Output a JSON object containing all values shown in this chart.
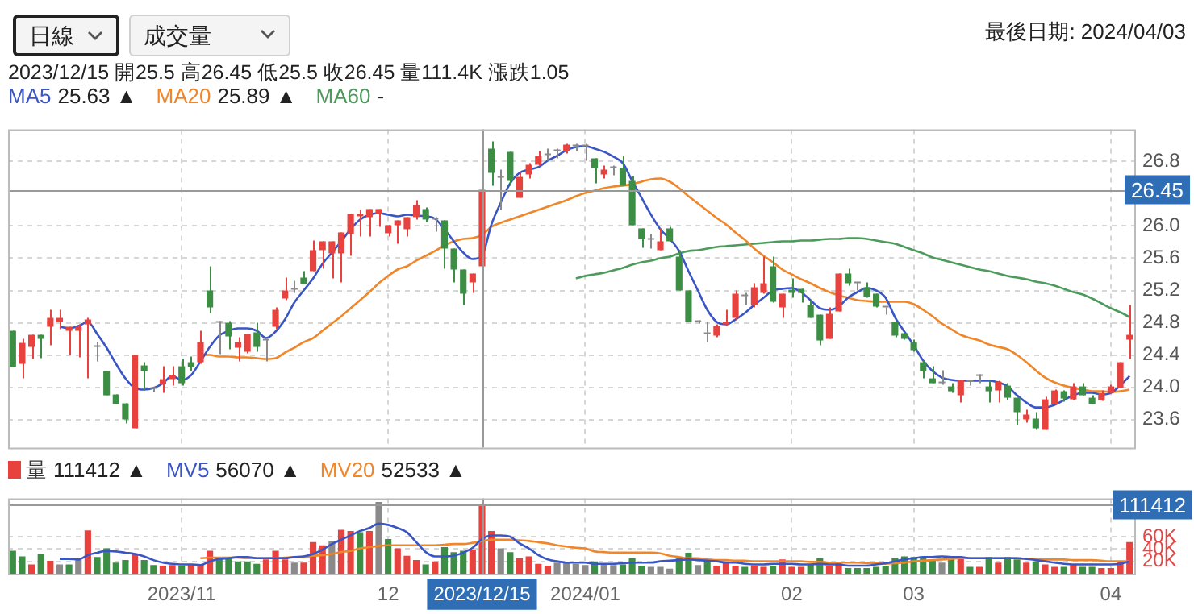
{
  "chart_data": [
    {
      "type": "candlestick",
      "title": "2023/12/15 開25.5 高26.45 低25.5 收26.45 量111.4K 漲跌1.05",
      "subtitle": "最後日期: 2024/04/03",
      "annotations": [
        "日線",
        "成交量",
        "25.63 ▲",
        "25.89 ▲",
        "-"
      ],
      "categories": [
        null,
        null,
        null,
        null,
        null,
        null,
        null,
        null,
        null,
        null,
        null,
        null,
        null,
        null,
        null,
        null,
        null,
        null,
        "2023/11",
        null,
        null,
        null,
        null,
        null,
        null,
        null,
        null,
        null,
        null,
        null,
        null,
        null,
        null,
        null,
        null,
        null,
        null,
        null,
        null,
        null,
        "12",
        null,
        null,
        null,
        null,
        null,
        null,
        null,
        null,
        null,
        "2023/12/15",
        null,
        null,
        null,
        null,
        null,
        null,
        null,
        null,
        null,
        null,
        "2024/01",
        null,
        null,
        null,
        null,
        null,
        null,
        null,
        null,
        null,
        null,
        null,
        null,
        null,
        null,
        null,
        null,
        null,
        null,
        null,
        null,
        null,
        "02",
        null,
        null,
        null,
        null,
        null,
        null,
        null,
        null,
        null,
        null,
        null,
        null,
        "03",
        null,
        null,
        null,
        null,
        null,
        null,
        null,
        null,
        null,
        null,
        null,
        null,
        null,
        null,
        null,
        null,
        null,
        null,
        null,
        null,
        "04",
        null,
        null
      ],
      "ohlc": [
        [
          24.7,
          24.7,
          24.25,
          24.25
        ],
        [
          24.29,
          24.6,
          24.11,
          24.55
        ],
        [
          24.5,
          24.65,
          24.35,
          24.65
        ],
        [
          24.65,
          24.65,
          24.36,
          24.6
        ],
        [
          24.75,
          24.96,
          24.52,
          24.86
        ],
        [
          24.81,
          24.96,
          24.72,
          24.86
        ],
        [
          24.7,
          24.75,
          24.4,
          24.75
        ],
        [
          24.7,
          24.78,
          24.37,
          24.75
        ],
        [
          24.78,
          24.86,
          24.11,
          24.84
        ],
        [
          24.5,
          24.56,
          24.32,
          24.5
        ],
        [
          24.2,
          24.2,
          23.9,
          23.9
        ],
        [
          23.91,
          23.91,
          23.79,
          23.79
        ],
        [
          23.8,
          23.8,
          23.55,
          23.6
        ],
        [
          23.49,
          24.4,
          23.49,
          24.4
        ],
        [
          24.27,
          24.31,
          23.96,
          24.2
        ],
        [
          23.98,
          24.0,
          23.94,
          23.98
        ],
        [
          24.04,
          24.26,
          23.93,
          24.1
        ],
        [
          24.1,
          24.26,
          24.02,
          24.15
        ],
        [
          24.26,
          24.35,
          24.02,
          24.05
        ],
        [
          24.31,
          24.38,
          24.2,
          24.25
        ],
        [
          24.31,
          24.7,
          24.29,
          24.56
        ],
        [
          25.2,
          25.5,
          24.92,
          24.99
        ],
        [
          24.8,
          24.82,
          24.41,
          24.8
        ],
        [
          24.8,
          24.82,
          24.47,
          24.63
        ],
        [
          24.49,
          24.62,
          24.32,
          24.56
        ],
        [
          24.44,
          24.66,
          24.42,
          24.66
        ],
        [
          24.68,
          24.8,
          24.44,
          24.5
        ],
        [
          24.58,
          24.6,
          24.32,
          24.58
        ],
        [
          24.75,
          24.99,
          24.72,
          24.96
        ],
        [
          25.1,
          25.36,
          25.08,
          25.2
        ],
        [
          25.21,
          25.32,
          25.17,
          25.21
        ],
        [
          25.36,
          25.44,
          25.28,
          25.28
        ],
        [
          25.44,
          25.82,
          25.44,
          25.7
        ],
        [
          25.7,
          25.81,
          25.47,
          25.81
        ],
        [
          25.66,
          25.81,
          25.35,
          25.81
        ],
        [
          25.66,
          25.92,
          25.3,
          25.92
        ],
        [
          25.9,
          26.15,
          25.63,
          26.15
        ],
        [
          26.12,
          26.2,
          25.87,
          26.15
        ],
        [
          26.11,
          26.21,
          25.87,
          26.21
        ],
        [
          26.15,
          26.21,
          25.99,
          26.21
        ],
        [
          25.91,
          26.01,
          25.87,
          26.01
        ],
        [
          26.01,
          26.07,
          25.78,
          26.07
        ],
        [
          25.96,
          26.11,
          25.87,
          26.11
        ],
        [
          26.11,
          26.32,
          26.08,
          26.26
        ],
        [
          26.21,
          26.23,
          26.05,
          26.08
        ],
        [
          26.08,
          26.11,
          25.93,
          26.08
        ],
        [
          26.07,
          26.07,
          25.47,
          25.72
        ],
        [
          25.72,
          25.72,
          25.3,
          25.46
        ],
        [
          25.46,
          25.46,
          25.02,
          25.16
        ],
        [
          25.3,
          25.41,
          25.17,
          25.41
        ],
        [
          25.5,
          26.45,
          25.5,
          26.45
        ],
        [
          26.96,
          27.05,
          26.5,
          26.66
        ],
        [
          26.6,
          26.7,
          26.2,
          26.6
        ],
        [
          26.92,
          26.92,
          26.5,
          26.56
        ],
        [
          26.35,
          26.66,
          26.35,
          26.61
        ],
        [
          26.64,
          26.78,
          26.59,
          26.76
        ],
        [
          26.76,
          26.93,
          26.75,
          26.87
        ],
        [
          26.88,
          26.96,
          26.81,
          26.88
        ],
        [
          26.93,
          26.96,
          26.84,
          26.93
        ],
        [
          26.93,
          27.02,
          26.9,
          27.01
        ],
        [
          26.99,
          27.02,
          26.93,
          26.99
        ],
        [
          26.99,
          27.02,
          26.81,
          26.99
        ],
        [
          26.84,
          26.84,
          26.53,
          26.72
        ],
        [
          26.64,
          26.75,
          26.59,
          26.7
        ],
        [
          26.72,
          26.75,
          26.63,
          26.72
        ],
        [
          26.72,
          26.87,
          26.5,
          26.5
        ],
        [
          26.56,
          26.62,
          26.01,
          26.01
        ],
        [
          25.97,
          25.97,
          25.73,
          25.84
        ],
        [
          25.83,
          25.9,
          25.72,
          25.83
        ],
        [
          25.7,
          25.97,
          25.7,
          25.81
        ],
        [
          25.97,
          25.99,
          25.81,
          25.81
        ],
        [
          25.62,
          25.7,
          25.2,
          25.2
        ],
        [
          25.2,
          25.2,
          24.81,
          24.81
        ],
        [
          24.81,
          24.83,
          24.79,
          24.81
        ],
        [
          24.66,
          24.81,
          24.56,
          24.66
        ],
        [
          24.64,
          24.78,
          24.62,
          24.76
        ],
        [
          24.78,
          24.96,
          24.76,
          24.81
        ],
        [
          24.86,
          25.2,
          24.84,
          25.16
        ],
        [
          25.13,
          25.17,
          25.02,
          25.13
        ],
        [
          25.02,
          25.29,
          24.99,
          25.24
        ],
        [
          25.17,
          25.62,
          25.16,
          25.29
        ],
        [
          25.5,
          25.62,
          25.05,
          25.06
        ],
        [
          24.99,
          25.16,
          24.86,
          25.16
        ],
        [
          25.21,
          25.35,
          25.11,
          25.17
        ],
        [
          25.22,
          25.22,
          25.05,
          25.17
        ],
        [
          25.02,
          25.08,
          24.86,
          24.86
        ],
        [
          24.9,
          24.9,
          24.52,
          24.58
        ],
        [
          24.6,
          24.99,
          24.6,
          24.91
        ],
        [
          24.94,
          25.41,
          24.94,
          25.41
        ],
        [
          25.41,
          25.47,
          25.26,
          25.29
        ],
        [
          25.29,
          25.3,
          25.2,
          25.29
        ],
        [
          25.24,
          25.3,
          25.11,
          25.12
        ],
        [
          25.16,
          25.16,
          24.99,
          25.0
        ],
        [
          24.99,
          24.99,
          24.9,
          24.99
        ],
        [
          24.81,
          24.82,
          24.62,
          24.64
        ],
        [
          24.67,
          24.67,
          24.59,
          24.6
        ],
        [
          24.56,
          24.59,
          24.44,
          24.46
        ],
        [
          24.31,
          24.33,
          24.11,
          24.2
        ],
        [
          24.11,
          24.26,
          24.05,
          24.05
        ],
        [
          24.05,
          24.21,
          24.03,
          24.05
        ],
        [
          24.01,
          24.05,
          23.93,
          23.95
        ],
        [
          23.9,
          24.09,
          23.81,
          24.09
        ],
        [
          24.07,
          24.09,
          24.02,
          24.07
        ],
        [
          24.14,
          24.16,
          24.05,
          24.14
        ],
        [
          24.01,
          24.08,
          23.81,
          23.95
        ],
        [
          23.96,
          24.08,
          23.81,
          24.07
        ],
        [
          24.02,
          24.05,
          23.84,
          23.87
        ],
        [
          23.87,
          23.87,
          23.53,
          23.69
        ],
        [
          23.6,
          23.72,
          23.56,
          23.66
        ],
        [
          23.61,
          23.69,
          23.47,
          23.49
        ],
        [
          23.47,
          23.88,
          23.47,
          23.85
        ],
        [
          23.79,
          23.97,
          23.78,
          23.96
        ],
        [
          23.95,
          23.96,
          23.82,
          23.86
        ],
        [
          23.85,
          24.05,
          23.84,
          24.01
        ],
        [
          24.01,
          24.05,
          23.9,
          23.9
        ],
        [
          23.87,
          23.9,
          23.79,
          23.79
        ],
        [
          23.84,
          23.96,
          23.83,
          23.93
        ],
        [
          23.93,
          24.03,
          23.92,
          24.01
        ],
        [
          23.99,
          24.31,
          23.99,
          24.31
        ],
        [
          24.59,
          25.02,
          24.35,
          24.65
        ]
      ],
      "colors": [
        "#3b8e44",
        "#e8423f",
        "#e8423f",
        "#3b8e44",
        "#e8423f",
        "#e8423f",
        "#e8423f",
        "#e8423f",
        "#e8423f",
        "#8a8a8a",
        "#3b8e44",
        "#3b8e44",
        "#3b8e44",
        "#e8423f",
        "#3b8e44",
        "#8a8a8a",
        "#e8423f",
        "#e8423f",
        "#3b8e44",
        "#3b8e44",
        "#e8423f",
        "#3b8e44",
        "#8a8a8a",
        "#3b8e44",
        "#e8423f",
        "#e8423f",
        "#3b8e44",
        "#8a8a8a",
        "#e8423f",
        "#e8423f",
        "#8a8a8a",
        "#3b8e44",
        "#e8423f",
        "#e8423f",
        "#e8423f",
        "#e8423f",
        "#e8423f",
        "#e8423f",
        "#e8423f",
        "#e8423f",
        "#e8423f",
        "#e8423f",
        "#e8423f",
        "#e8423f",
        "#3b8e44",
        "#8a8a8a",
        "#3b8e44",
        "#3b8e44",
        "#3b8e44",
        "#e8423f",
        "#e8423f",
        "#3b8e44",
        "#8a8a8a",
        "#3b8e44",
        "#e8423f",
        "#e8423f",
        "#e8423f",
        "#8a8a8a",
        "#8a8a8a",
        "#e8423f",
        "#8a8a8a",
        "#8a8a8a",
        "#3b8e44",
        "#e8423f",
        "#8a8a8a",
        "#3b8e44",
        "#3b8e44",
        "#3b8e44",
        "#8a8a8a",
        "#e8423f",
        "#3b8e44",
        "#3b8e44",
        "#3b8e44",
        "#8a8a8a",
        "#8a8a8a",
        "#e8423f",
        "#e8423f",
        "#e8423f",
        "#8a8a8a",
        "#e8423f",
        "#e8423f",
        "#3b8e44",
        "#e8423f",
        "#3b8e44",
        "#3b8e44",
        "#3b8e44",
        "#3b8e44",
        "#e8423f",
        "#e8423f",
        "#3b8e44",
        "#8a8a8a",
        "#3b8e44",
        "#3b8e44",
        "#8a8a8a",
        "#3b8e44",
        "#3b8e44",
        "#3b8e44",
        "#3b8e44",
        "#3b8e44",
        "#8a8a8a",
        "#3b8e44",
        "#e8423f",
        "#8a8a8a",
        "#8a8a8a",
        "#3b8e44",
        "#e8423f",
        "#3b8e44",
        "#3b8e44",
        "#e8423f",
        "#3b8e44",
        "#e8423f",
        "#e8423f",
        "#3b8e44",
        "#e8423f",
        "#3b8e44",
        "#3b8e44",
        "#e8423f",
        "#e8423f",
        "#e8423f",
        "#e8423f"
      ],
      "series": [
        {
          "name": "MA5",
          "type": "line",
          "color": "#3a55c4",
          "values": [
            null,
            null,
            null,
            null,
            null,
            24.75,
            24.73,
            24.76,
            24.81,
            24.66,
            24.49,
            24.29,
            24.11,
            23.99,
            23.97,
            23.99,
            24.05,
            24.14,
            24.09,
            24.15,
            24.32,
            24.5,
            24.64,
            24.7,
            24.73,
            24.73,
            24.7,
            24.61,
            24.69,
            24.84,
            25.05,
            25.2,
            25.35,
            25.53,
            25.67,
            25.81,
            25.96,
            26.08,
            26.14,
            26.16,
            26.14,
            26.12,
            26.14,
            26.13,
            26.12,
            26.09,
            25.96,
            25.81,
            25.67,
            25.59,
            25.63,
            26.02,
            26.29,
            26.53,
            26.66,
            26.7,
            26.73,
            26.81,
            26.87,
            26.94,
            26.98,
            26.99,
            26.96,
            26.92,
            26.86,
            26.78,
            26.56,
            26.35,
            26.14,
            25.96,
            25.84,
            25.69,
            25.44,
            25.2,
            24.96,
            24.81,
            24.78,
            24.84,
            24.92,
            25.02,
            25.11,
            25.2,
            25.22,
            25.23,
            25.18,
            25.08,
            24.98,
            24.96,
            25.0,
            25.11,
            25.18,
            25.23,
            25.2,
            25.11,
            24.87,
            24.69,
            24.52,
            24.33,
            24.2,
            24.12,
            24.09,
            24.08,
            24.08,
            24.08,
            24.08,
            24.06,
            24.01,
            23.9,
            23.81,
            23.75,
            23.75,
            23.78,
            23.84,
            23.9,
            23.93,
            23.93,
            23.91,
            23.93,
            24.02,
            24.14
          ]
        },
        {
          "name": "MA20",
          "type": "line",
          "color": "#f0862a",
          "values": [
            null,
            null,
            null,
            null,
            null,
            null,
            null,
            null,
            null,
            null,
            null,
            null,
            null,
            null,
            null,
            null,
            null,
            null,
            null,
            null,
            24.4,
            24.4,
            24.38,
            24.38,
            24.37,
            24.37,
            24.36,
            24.35,
            24.36,
            24.43,
            24.49,
            24.56,
            24.61,
            24.7,
            24.79,
            24.88,
            24.98,
            25.08,
            25.18,
            25.29,
            25.38,
            25.46,
            25.5,
            25.57,
            25.63,
            25.69,
            25.76,
            25.81,
            25.84,
            25.85,
            25.89,
            25.99,
            26.04,
            26.08,
            26.12,
            26.16,
            26.2,
            26.24,
            26.28,
            26.32,
            26.37,
            26.41,
            26.44,
            26.47,
            26.49,
            26.5,
            26.52,
            26.55,
            26.58,
            26.59,
            26.55,
            26.47,
            26.37,
            26.28,
            26.19,
            26.1,
            26.02,
            25.92,
            25.83,
            25.72,
            25.63,
            25.55,
            25.46,
            25.4,
            25.34,
            25.29,
            25.23,
            25.18,
            25.14,
            25.11,
            25.08,
            25.07,
            25.06,
            25.06,
            25.06,
            25.06,
            25.03,
            24.96,
            24.88,
            24.79,
            24.72,
            24.65,
            24.61,
            24.58,
            24.53,
            24.5,
            24.47,
            24.4,
            24.31,
            24.21,
            24.12,
            24.06,
            24.02,
            23.99,
            23.97,
            23.95,
            23.95,
            23.94,
            23.95,
            23.97
          ]
        },
        {
          "name": "MA60",
          "type": "line",
          "color": "#4c9a5c",
          "values": [
            null,
            null,
            null,
            null,
            null,
            null,
            null,
            null,
            null,
            null,
            null,
            null,
            null,
            null,
            null,
            null,
            null,
            null,
            null,
            null,
            null,
            null,
            null,
            null,
            null,
            null,
            null,
            null,
            null,
            null,
            null,
            null,
            null,
            null,
            null,
            null,
            null,
            null,
            null,
            null,
            null,
            null,
            null,
            null,
            null,
            null,
            null,
            null,
            null,
            null,
            null,
            null,
            null,
            null,
            null,
            null,
            null,
            null,
            null,
            null,
            25.35,
            25.38,
            25.4,
            25.42,
            25.45,
            25.48,
            25.52,
            25.55,
            25.57,
            25.6,
            25.62,
            25.66,
            25.69,
            25.7,
            25.72,
            25.74,
            25.75,
            25.76,
            25.77,
            25.78,
            25.79,
            25.8,
            25.81,
            25.81,
            25.82,
            25.82,
            25.83,
            25.84,
            25.84,
            25.85,
            25.85,
            25.84,
            25.82,
            25.8,
            25.78,
            25.74,
            25.7,
            25.66,
            25.61,
            25.58,
            25.55,
            25.52,
            25.49,
            25.46,
            25.44,
            25.41,
            25.38,
            25.36,
            25.34,
            25.31,
            25.29,
            25.26,
            25.22,
            25.18,
            25.15,
            25.1,
            25.04,
            24.98,
            24.93,
            24.87
          ]
        }
      ],
      "ylim": [
        23.25,
        27.2
      ],
      "yticks": [
        23.6,
        {
          "value": 24,
          "label": "24.0"
        },
        24.4,
        24.8,
        25.2,
        25.6,
        {
          "value": 26,
          "label": "26.0"
        },
        26.8
      ],
      "ref_lines": [
        {
          "axis": "x",
          "value": "2023/12/15"
        },
        {
          "axis": "y",
          "value": 26.45,
          "label": "26.45"
        }
      ],
      "grid": true,
      "legend": "top left",
      "tick_labels": "y"
    },
    {
      "type": "bar",
      "annotations": [
        "111412 ▲",
        "56070 ▲",
        "52533 ▲"
      ],
      "categories": [
        null,
        null,
        null,
        null,
        null,
        null,
        null,
        null,
        null,
        null,
        null,
        null,
        null,
        null,
        null,
        null,
        null,
        null,
        "2023/11",
        null,
        null,
        null,
        null,
        null,
        null,
        null,
        null,
        null,
        null,
        null,
        null,
        null,
        null,
        null,
        null,
        null,
        null,
        null,
        null,
        null,
        "12",
        null,
        null,
        null,
        null,
        null,
        null,
        null,
        null,
        null,
        "2023/12/15",
        null,
        null,
        null,
        null,
        null,
        null,
        null,
        null,
        null,
        null,
        "2024/01",
        null,
        null,
        null,
        null,
        null,
        null,
        null,
        null,
        null,
        null,
        null,
        null,
        null,
        null,
        null,
        null,
        null,
        null,
        null,
        null,
        null,
        "02",
        null,
        null,
        null,
        null,
        null,
        null,
        null,
        null,
        null,
        null,
        null,
        null,
        "03",
        null,
        null,
        null,
        null,
        null,
        null,
        null,
        null,
        null,
        null,
        null,
        null,
        null,
        null,
        null,
        null,
        null,
        null,
        null,
        null,
        "04",
        null,
        null
      ],
      "series": [
        {
          "name": "量",
          "type": "bar",
          "colors": [
            "#3b8e44",
            "#3b8e44",
            "#e8423f",
            "#3b8e44",
            "#e8423f",
            "#8a8a8a",
            "#3b8e44",
            "#8a8a8a",
            "#e8423f",
            "#3b8e44",
            "#3b8e44",
            "#3b8e44",
            "#3b8e44",
            "#e8423f",
            "#3b8e44",
            "#3b8e44",
            "#e8423f",
            "#e8423f",
            "#3b8e44",
            "#e8423f",
            "#e8423f",
            "#e8423f",
            "#3b8e44",
            "#3b8e44",
            "#3b8e44",
            "#3b8e44",
            "#3b8e44",
            "#e8423f",
            "#e8423f",
            "#e8423f",
            "#8a8a8a",
            "#e8423f",
            "#e8423f",
            "#e8423f",
            "#8a8a8a",
            "#e8423f",
            "#e8423f",
            "#3b8e44",
            "#e8423f",
            "#8a8a8a",
            "#3b8e44",
            "#e8423f",
            "#e8423f",
            "#e8423f",
            "#3b8e44",
            "#e8423f",
            "#3b8e44",
            "#3b8e44",
            "#3b8e44",
            "#e8423f",
            "#e8423f",
            "#e8423f",
            "#8a8a8a",
            "#3b8e44",
            "#e8423f",
            "#e8423f",
            "#e8423f",
            "#e8423f",
            "#8a8a8a",
            "#8a8a8a",
            "#8a8a8a",
            "#8a8a8a",
            "#3b8e44",
            "#8a8a8a",
            "#8a8a8a",
            "#3b8e44",
            "#3b8e44",
            "#3b8e44",
            "#8a8a8a",
            "#8a8a8a",
            "#8a8a8a",
            "#3b8e44",
            "#3b8e44",
            "#8a8a8a",
            "#3b8e44",
            "#e8423f",
            "#e8423f",
            "#e8423f",
            "#3b8e44",
            "#e8423f",
            "#e8423f",
            "#3b8e44",
            "#e8423f",
            "#e8423f",
            "#e8423f",
            "#3b8e44",
            "#3b8e44",
            "#e8423f",
            "#e8423f",
            "#3b8e44",
            "#3b8e44",
            "#3b8e44",
            "#3b8e44",
            "#3b8e44",
            "#3b8e44",
            "#3b8e44",
            "#3b8e44",
            "#3b8e44",
            "#3b8e44",
            "#8a8a8a",
            "#3b8e44",
            "#e8423f",
            "#3b8e44",
            "#e8423f",
            "#3b8e44",
            "#e8423f",
            "#3b8e44",
            "#3b8e44",
            "#e8423f",
            "#3b8e44",
            "#e8423f",
            "#e8423f",
            "#3b8e44",
            "#e8423f",
            "#3b8e44",
            "#3b8e44",
            "#e8423f",
            "#e8423f",
            "#e8423f",
            "#e8423f"
          ],
          "values": [
            37000,
            28000,
            15000,
            32000,
            21000,
            15000,
            15000,
            22000,
            70000,
            27000,
            41000,
            18000,
            22000,
            33000,
            22000,
            14000,
            13000,
            14000,
            13000,
            14000,
            15000,
            37000,
            25000,
            25000,
            20000,
            20000,
            16000,
            23000,
            37000,
            23000,
            18000,
            18000,
            51000,
            46000,
            53000,
            71000,
            69000,
            67000,
            69000,
            116000,
            56000,
            41000,
            29000,
            22000,
            15000,
            20000,
            43000,
            35000,
            37000,
            39000,
            111412,
            69000,
            41000,
            35000,
            25000,
            28000,
            16000,
            13000,
            18000,
            18000,
            16000,
            14000,
            20000,
            15000,
            14000,
            15000,
            25000,
            13000,
            11000,
            11000,
            8000,
            25000,
            34000,
            14000,
            21000,
            13000,
            18000,
            13000,
            11000,
            13000,
            11000,
            13000,
            23000,
            11000,
            11000,
            16000,
            25000,
            13000,
            18000,
            9000,
            9000,
            9000,
            11000,
            13000,
            25000,
            28000,
            27000,
            27000,
            21000,
            18000,
            27000,
            25000,
            11000,
            11000,
            27000,
            18000,
            27000,
            23000,
            18000,
            20000,
            15000,
            11000,
            11000,
            15000,
            11000,
            11000,
            9000,
            9000,
            20000,
            51000
          ]
        },
        {
          "name": "MV5",
          "type": "line",
          "color": "#3a55c4",
          "values": [
            null,
            null,
            null,
            null,
            null,
            24000,
            24000,
            23000,
            30000,
            34000,
            37000,
            36000,
            34000,
            32000,
            28000,
            22000,
            18000,
            16000,
            15000,
            15000,
            14000,
            20000,
            24000,
            25000,
            27000,
            27000,
            25000,
            25000,
            25000,
            25000,
            27000,
            28000,
            32000,
            39000,
            48000,
            55000,
            62000,
            69000,
            74000,
            81000,
            79000,
            74000,
            67000,
            51000,
            35000,
            28000,
            28000,
            29000,
            34000,
            42000,
            56070,
            62000,
            62000,
            60000,
            49000,
            41000,
            30000,
            23000,
            20000,
            18000,
            18000,
            18000,
            16000,
            16000,
            16000,
            17000,
            18000,
            18000,
            18000,
            20000,
            21000,
            22000,
            23000,
            22000,
            21000,
            20000,
            18000,
            18000,
            16000,
            15000,
            15000,
            16000,
            16000,
            16000,
            15000,
            15000,
            16000,
            15000,
            15000,
            13000,
            13000,
            13000,
            15000,
            17000,
            20000,
            23000,
            25000,
            27000,
            27000,
            28000,
            27000,
            27000,
            25000,
            25000,
            25000,
            25000,
            25000,
            25000,
            24000,
            22000,
            20000,
            18000,
            16000,
            15000,
            15000,
            15000,
            15000,
            15000,
            16000,
            20000
          ]
        },
        {
          "name": "MV20",
          "type": "line",
          "color": "#f0862a",
          "values": [
            null,
            null,
            null,
            null,
            null,
            null,
            null,
            null,
            null,
            null,
            null,
            null,
            null,
            null,
            null,
            null,
            null,
            null,
            null,
            null,
            25000,
            26000,
            26000,
            26000,
            26000,
            25000,
            25000,
            25000,
            25000,
            26000,
            27000,
            27000,
            29000,
            30000,
            32000,
            35000,
            37000,
            41000,
            43000,
            45000,
            46000,
            46000,
            46000,
            46000,
            46000,
            46000,
            47000,
            48000,
            48000,
            50000,
            52533,
            55000,
            55000,
            55000,
            54000,
            53000,
            51000,
            49000,
            46000,
            44000,
            42000,
            41000,
            36000,
            35000,
            34000,
            34000,
            34000,
            34000,
            34000,
            33000,
            29000,
            27000,
            25000,
            25000,
            23000,
            22000,
            22000,
            21000,
            21000,
            20000,
            20000,
            20000,
            20000,
            20000,
            20000,
            19000,
            19000,
            18000,
            18000,
            18000,
            18000,
            17000,
            17000,
            16000,
            17000,
            18000,
            20000,
            21000,
            22000,
            23000,
            24000,
            25000,
            25000,
            25000,
            25000,
            25000,
            25000,
            25000,
            24000,
            24000,
            23000,
            23000,
            23000,
            22000,
            22000,
            22000,
            21000,
            20000,
            20000,
            20000
          ]
        }
      ],
      "ylim": [
        0,
        122000
      ],
      "yticks": [
        {
          "value": 20000,
          "label": "20K"
        },
        {
          "value": 40000,
          "label": "40K"
        },
        {
          "value": 60000,
          "label": "60K"
        }
      ],
      "ref_lines": [
        {
          "axis": "x",
          "value": "2023/12/15"
        },
        {
          "axis": "y",
          "value": 111412,
          "label": "111412"
        }
      ],
      "grid": true,
      "legend": "top left"
    }
  ]
}
